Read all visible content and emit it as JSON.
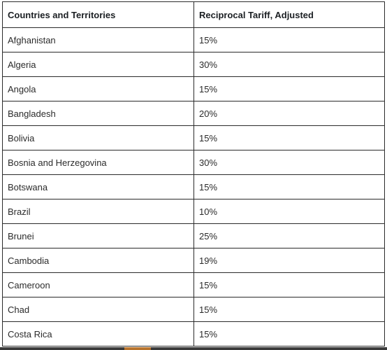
{
  "table": {
    "headers": [
      "Countries and Territories",
      "Reciprocal Tariff, Adjusted"
    ],
    "rows": [
      [
        "Afghanistan",
        "15%"
      ],
      [
        "Algeria",
        "30%"
      ],
      [
        "Angola",
        "15%"
      ],
      [
        "Bangladesh",
        "20%"
      ],
      [
        "Bolivia",
        "15%"
      ],
      [
        "Bosnia and Herzegovina",
        "30%"
      ],
      [
        "Botswana",
        "15%"
      ],
      [
        "Brazil",
        "10%"
      ],
      [
        "Brunei",
        "25%"
      ],
      [
        "Cambodia",
        "19%"
      ],
      [
        "Cameroon",
        "15%"
      ],
      [
        "Chad",
        "15%"
      ],
      [
        "Costa Rica",
        "15%"
      ]
    ]
  }
}
